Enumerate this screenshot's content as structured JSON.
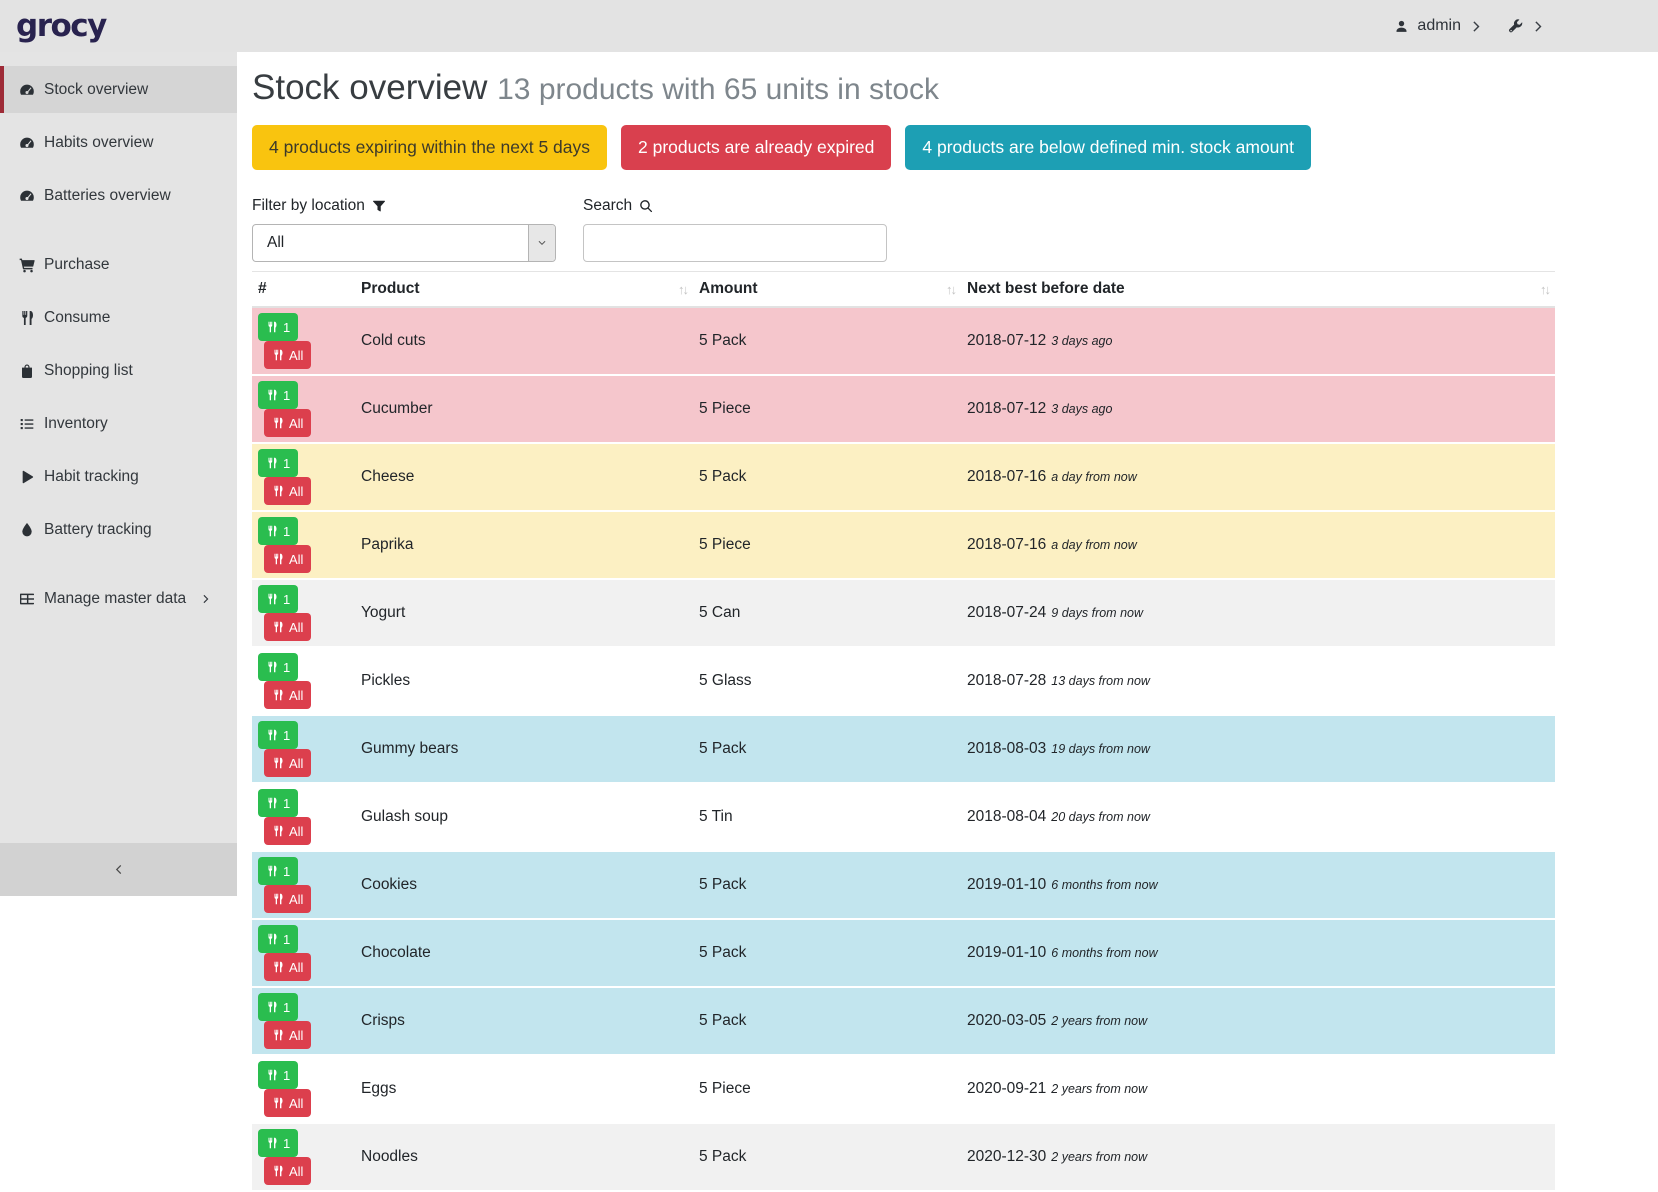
{
  "topbar": {
    "logo": "grocy",
    "user_label": "admin"
  },
  "sidebar": {
    "groups": [
      {
        "items": [
          {
            "icon": "tachometer",
            "label": "Stock overview",
            "active": true
          },
          {
            "icon": "tachometer",
            "label": "Habits overview"
          },
          {
            "icon": "tachometer",
            "label": "Batteries overview"
          }
        ]
      },
      {
        "items": [
          {
            "icon": "cart",
            "label": "Purchase"
          },
          {
            "icon": "utensils",
            "label": "Consume"
          },
          {
            "icon": "bag",
            "label": "Shopping list"
          },
          {
            "icon": "list",
            "label": "Inventory"
          },
          {
            "icon": "play",
            "label": "Habit tracking"
          },
          {
            "icon": "droplet",
            "label": "Battery tracking"
          }
        ]
      },
      {
        "items": [
          {
            "icon": "table",
            "label": "Manage master data",
            "chevron": true
          }
        ]
      }
    ]
  },
  "header": {
    "title": "Stock overview",
    "subtitle": "13 products with 65 units in stock"
  },
  "badges": [
    {
      "text": "4 products expiring within the next 5 days",
      "bg": "#f9c40f",
      "fg": "#3d3a2a"
    },
    {
      "text": "2 products are already expired",
      "bg": "#d9404e",
      "fg": "#ffffff"
    },
    {
      "text": "4 products are below defined min. stock amount",
      "bg": "#1d9fb4",
      "fg": "#ffffff"
    }
  ],
  "filters": {
    "location_label": "Filter by location",
    "location_value": "All",
    "search_label": "Search",
    "search_value": ""
  },
  "table": {
    "columns": [
      "#",
      "Product",
      "Amount",
      "Next best before date"
    ],
    "sort_indicator": "↑↓",
    "consume_one_label": "1",
    "consume_all_label": "All",
    "rows": [
      {
        "product": "Cold cuts",
        "amount": "5 Pack",
        "date": "2018-07-12",
        "relative": "3 days ago",
        "status": "expired"
      },
      {
        "product": "Cucumber",
        "amount": "5 Piece",
        "date": "2018-07-12",
        "relative": "3 days ago",
        "status": "expired"
      },
      {
        "product": "Cheese",
        "amount": "5 Pack",
        "date": "2018-07-16",
        "relative": "a day from now",
        "status": "expiring"
      },
      {
        "product": "Paprika",
        "amount": "5 Piece",
        "date": "2018-07-16",
        "relative": "a day from now",
        "status": "expiring"
      },
      {
        "product": "Yogurt",
        "amount": "5 Can",
        "date": "2018-07-24",
        "relative": "9 days from now",
        "status": "stripe"
      },
      {
        "product": "Pickles",
        "amount": "5 Glass",
        "date": "2018-07-28",
        "relative": "13 days from now",
        "status": "default"
      },
      {
        "product": "Gummy bears",
        "amount": "5 Pack",
        "date": "2018-08-03",
        "relative": "19 days from now",
        "status": "below_min"
      },
      {
        "product": "Gulash soup",
        "amount": "5 Tin",
        "date": "2018-08-04",
        "relative": "20 days from now",
        "status": "default"
      },
      {
        "product": "Cookies",
        "amount": "5 Pack",
        "date": "2019-01-10",
        "relative": "6 months from now",
        "status": "below_min"
      },
      {
        "product": "Chocolate",
        "amount": "5 Pack",
        "date": "2019-01-10",
        "relative": "6 months from now",
        "status": "below_min"
      },
      {
        "product": "Crisps",
        "amount": "5 Pack",
        "date": "2020-03-05",
        "relative": "2 years from now",
        "status": "below_min"
      },
      {
        "product": "Eggs",
        "amount": "5 Piece",
        "date": "2020-09-21",
        "relative": "2 years from now",
        "status": "default"
      },
      {
        "product": "Noodles",
        "amount": "5 Pack",
        "date": "2020-12-30",
        "relative": "2 years from now",
        "status": "stripe"
      }
    ]
  },
  "colors": {
    "row_expired": "#f5c6cc",
    "row_expiring": "#fcf0c3",
    "row_below_min": "#c2e5ee",
    "row_stripe": "#f1f1f1",
    "row_default": "#ffffff",
    "btn_consume_one": "#2abd4f",
    "btn_consume_all": "#dc3f4d",
    "nav_active_accent": "#9e2b37",
    "logo_color": "#29234f"
  }
}
